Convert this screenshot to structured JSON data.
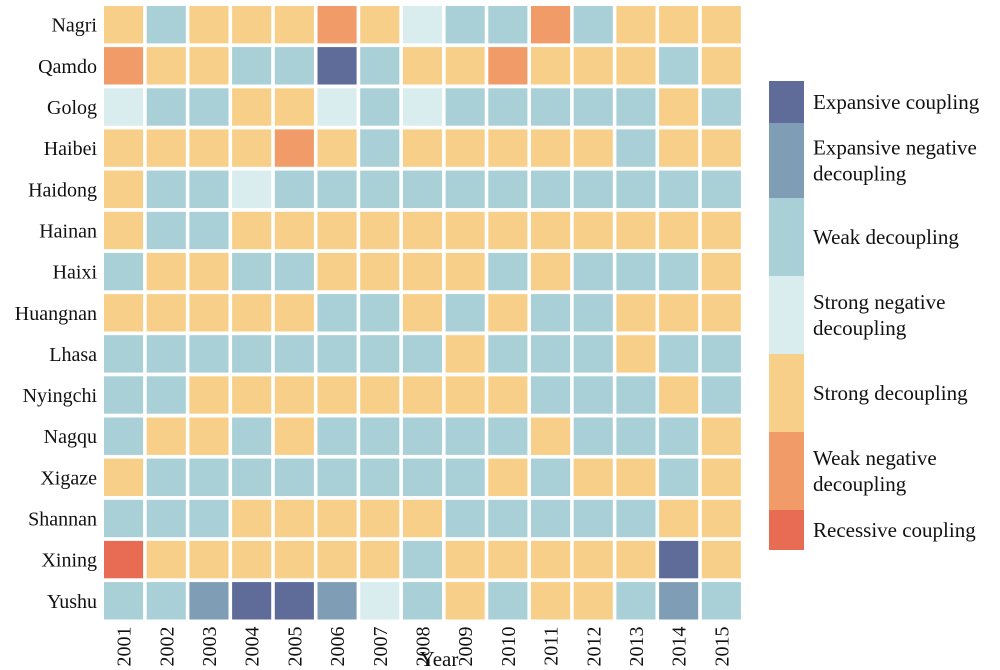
{
  "chart_data": {
    "type": "heatmap",
    "title": "",
    "xlabel": "Year",
    "ylabel": "",
    "columns": [
      "2001",
      "2002",
      "2003",
      "2004",
      "2005",
      "2006",
      "2007",
      "2008",
      "2009",
      "2010",
      "2011",
      "2012",
      "2013",
      "2014",
      "2015"
    ],
    "rows": [
      "Nagri",
      "Qamdo",
      "Golog",
      "Haibei",
      "Haidong",
      "Hainan",
      "Haixi",
      "Huangnan",
      "Lhasa",
      "Nyingchi",
      "Nagqu",
      "Xigaze",
      "Shannan",
      "Xining",
      "Yushu"
    ],
    "categories": [
      {
        "key": "EC",
        "label": "Expansive coupling",
        "color": "#5f6b98"
      },
      {
        "key": "END",
        "label": "Expansive negative decoupling",
        "color": "#7f9db4"
      },
      {
        "key": "WD",
        "label": "Weak decoupling",
        "color": "#a9cfd7"
      },
      {
        "key": "SND",
        "label": "Strong negative decoupling",
        "color": "#d9ecee"
      },
      {
        "key": "SD",
        "label": "Strong decoupling",
        "color": "#f8cf89"
      },
      {
        "key": "WND",
        "label": "Weak negative decoupling",
        "color": "#f19c68"
      },
      {
        "key": "RC",
        "label": "Recessive coupling",
        "color": "#e86c53"
      }
    ],
    "values": [
      [
        "SD",
        "WD",
        "SD",
        "SD",
        "SD",
        "WND",
        "SD",
        "SND",
        "WD",
        "WD",
        "WND",
        "WD",
        "SD",
        "SD",
        "SD"
      ],
      [
        "WND",
        "SD",
        "SD",
        "WD",
        "WD",
        "EC",
        "WD",
        "SD",
        "SD",
        "WND",
        "SD",
        "SD",
        "SD",
        "WD",
        "SD"
      ],
      [
        "SND",
        "WD",
        "WD",
        "SD",
        "SD",
        "SND",
        "WD",
        "SND",
        "WD",
        "WD",
        "WD",
        "WD",
        "WD",
        "SD",
        "WD"
      ],
      [
        "SD",
        "SD",
        "SD",
        "SD",
        "WND",
        "SD",
        "WD",
        "SD",
        "SD",
        "SD",
        "SD",
        "SD",
        "WD",
        "SD",
        "SD"
      ],
      [
        "SD",
        "WD",
        "WD",
        "SND",
        "WD",
        "WD",
        "WD",
        "WD",
        "WD",
        "WD",
        "WD",
        "WD",
        "WD",
        "WD",
        "WD"
      ],
      [
        "SD",
        "WD",
        "WD",
        "SD",
        "SD",
        "SD",
        "SD",
        "SD",
        "SD",
        "SD",
        "SD",
        "SD",
        "SD",
        "SD",
        "SD"
      ],
      [
        "WD",
        "SD",
        "SD",
        "WD",
        "WD",
        "SD",
        "SD",
        "SD",
        "SD",
        "WD",
        "SD",
        "WD",
        "WD",
        "WD",
        "SD"
      ],
      [
        "SD",
        "SD",
        "SD",
        "SD",
        "SD",
        "WD",
        "WD",
        "SD",
        "WD",
        "SD",
        "WD",
        "WD",
        "SD",
        "SD",
        "SD"
      ],
      [
        "WD",
        "WD",
        "WD",
        "WD",
        "WD",
        "WD",
        "WD",
        "WD",
        "SD",
        "WD",
        "WD",
        "WD",
        "SD",
        "WD",
        "WD"
      ],
      [
        "WD",
        "WD",
        "SD",
        "SD",
        "SD",
        "SD",
        "SD",
        "SD",
        "SD",
        "SD",
        "WD",
        "WD",
        "WD",
        "SD",
        "WD"
      ],
      [
        "WD",
        "SD",
        "SD",
        "WD",
        "SD",
        "WD",
        "WD",
        "WD",
        "WD",
        "WD",
        "SD",
        "WD",
        "WD",
        "WD",
        "SD"
      ],
      [
        "SD",
        "WD",
        "WD",
        "WD",
        "WD",
        "WD",
        "WD",
        "WD",
        "WD",
        "SD",
        "WD",
        "SD",
        "SD",
        "WD",
        "SD"
      ],
      [
        "WD",
        "WD",
        "WD",
        "SD",
        "SD",
        "SD",
        "SD",
        "SD",
        "WD",
        "WD",
        "WD",
        "WD",
        "WD",
        "SD",
        "SD"
      ],
      [
        "RC",
        "SD",
        "SD",
        "SD",
        "SD",
        "SD",
        "SD",
        "WD",
        "SD",
        "SD",
        "SD",
        "SD",
        "SD",
        "EC",
        "SD"
      ],
      [
        "WD",
        "WD",
        "END",
        "EC",
        "EC",
        "END",
        "SND",
        "WD",
        "SD",
        "WD",
        "SD",
        "SD",
        "WD",
        "END",
        "WD"
      ]
    ],
    "legend_position": "right"
  }
}
